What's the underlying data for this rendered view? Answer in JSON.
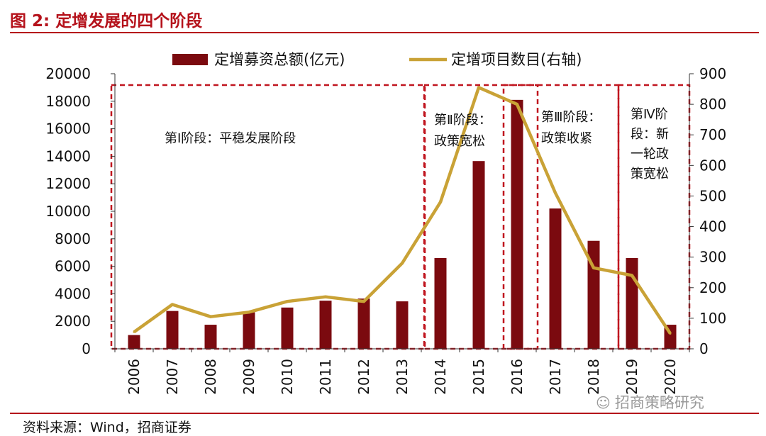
{
  "figure": {
    "title": "图 2:  定增发展的四个阶段",
    "source": "资料来源：Wind，招商证券",
    "watermark": "招商策略研究",
    "watermark_icon": "wechat-icon"
  },
  "colors": {
    "bar": "#7b0a0f",
    "line": "#c9a236",
    "accent": "#b5121b",
    "stage_border": "#c0151f"
  },
  "chart_data": {
    "type": "bar+line",
    "categories": [
      "2006",
      "2007",
      "2008",
      "2009",
      "2010",
      "2011",
      "2012",
      "2013",
      "2014",
      "2015",
      "2016",
      "2017",
      "2018",
      "2019",
      "2020"
    ],
    "series": [
      {
        "name": "定增募资总额(亿元)",
        "type": "bar",
        "axis": "left",
        "values": [
          1000,
          2750,
          1750,
          2650,
          3000,
          3500,
          3650,
          3450,
          6600,
          13650,
          18100,
          10200,
          7850,
          6600,
          1750
        ]
      },
      {
        "name": "定增项目数目(右轴)",
        "type": "line",
        "axis": "right",
        "values": [
          55,
          145,
          105,
          120,
          155,
          170,
          155,
          280,
          480,
          855,
          800,
          510,
          265,
          240,
          50
        ]
      }
    ],
    "yleft": {
      "min": 0,
      "max": 20000,
      "ticks": [
        0,
        2000,
        4000,
        6000,
        8000,
        10000,
        12000,
        14000,
        16000,
        18000,
        20000
      ]
    },
    "yright": {
      "min": 0,
      "max": 900,
      "ticks": [
        0,
        100,
        200,
        300,
        400,
        500,
        600,
        700,
        800,
        900
      ]
    },
    "legend_position": "top-center",
    "stages": [
      {
        "from": "2006",
        "to": "2013",
        "lines": [
          "第Ⅰ阶段：平稳发展阶段"
        ]
      },
      {
        "from": "2014",
        "to": "2016",
        "lines": [
          "第Ⅱ阶段：",
          "政策宽松"
        ]
      },
      {
        "from": "2016",
        "to": "2018",
        "lines": [
          "第Ⅲ阶段：",
          "政策收紧"
        ]
      },
      {
        "from": "2019",
        "to": "2020",
        "lines": [
          "第Ⅳ阶",
          "段：新",
          "一轮政",
          "策宽松"
        ]
      }
    ]
  }
}
